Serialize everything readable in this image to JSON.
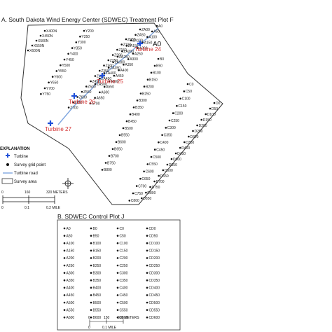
{
  "panelA": {
    "title": "A. South Dakota Wind Energy Center (SDWEC) Treatment Plot F",
    "extra_label": "A0",
    "turbines": [
      "Turbine 24",
      "Turbine 25",
      "Turbine 26",
      "Turbine 27"
    ],
    "point_labels": [
      "X400N",
      "X450N",
      "X500N",
      "X550N",
      "X600N",
      "Y200",
      "Y250",
      "Y300",
      "Y350",
      "Y400",
      "Y450",
      "Y500",
      "Y550",
      "Y600",
      "Y650",
      "Y700",
      "Y750",
      "Z050",
      "Z100",
      "Z150",
      "Z200",
      "Z250",
      "Z300",
      "Z350",
      "Z400",
      "Z450",
      "Z500",
      "Z550",
      "Z600",
      "Z650",
      "Z700",
      "ZA00",
      "ZA50",
      "ZA100",
      "ZA150",
      "ZA200",
      "ZA250",
      "ZA300",
      "ZA350",
      "ZA400",
      "ZA450",
      "ZA500",
      "A0",
      "A50",
      "A100",
      "A150",
      "A200",
      "A250",
      "A300",
      "A350",
      "A400",
      "A450",
      "A500",
      "A550",
      "A600",
      "A650",
      "A700",
      "B0",
      "B50",
      "B100",
      "B150",
      "B200",
      "B250",
      "B300",
      "B350",
      "B400",
      "B450",
      "B500",
      "B550",
      "B600",
      "B650",
      "B700",
      "B750",
      "B800",
      "C0",
      "C50",
      "C100",
      "C150",
      "C200",
      "C250",
      "C300",
      "C350",
      "C400",
      "C450",
      "C500",
      "C550",
      "C600",
      "C650",
      "C700",
      "C750",
      "C800",
      "D0",
      "D50",
      "D100",
      "D150",
      "D200",
      "D250",
      "D300",
      "D350",
      "D400",
      "D450",
      "D500",
      "D550",
      "D600",
      "D650",
      "D700",
      "D750",
      "D800",
      "D850"
    ]
  },
  "legend": {
    "title": "EXPLANATION",
    "items": [
      "Turbine",
      "Survey grid point",
      "Turbine road",
      "Survey area"
    ],
    "scale_m": [
      "0",
      "160",
      "320 METERS"
    ],
    "scale_mi": [
      "0",
      "0.1",
      "0.2 MILE"
    ]
  },
  "panelB": {
    "title": "B. SDWEC Control Plot J",
    "columns": [
      {
        "name": "A",
        "labels": [
          "A0",
          "A50",
          "A100",
          "A150",
          "A200",
          "A250",
          "A300",
          "A350",
          "A400",
          "A450",
          "A500",
          "A550",
          "A600"
        ]
      },
      {
        "name": "B",
        "labels": [
          "B0",
          "B50",
          "B100",
          "B150",
          "B200",
          "B250",
          "B300",
          "B350",
          "B400",
          "B450",
          "B500",
          "B550",
          "B600"
        ]
      },
      {
        "name": "C",
        "labels": [
          "C0",
          "C50",
          "C100",
          "C150",
          "C200",
          "C250",
          "C300",
          "C350",
          "C400",
          "C450",
          "C500",
          "C550",
          "C600"
        ]
      },
      {
        "name": "CD",
        "labels": [
          "CD0",
          "CD50",
          "CD100",
          "CD150",
          "CD200",
          "CD250",
          "CD300",
          "CD350",
          "CD400",
          "CD450",
          "CD500",
          "CD550",
          "CD600"
        ]
      }
    ],
    "scale_m": [
      "0",
      "150",
      "300 METERS"
    ],
    "scale_mi": [
      "0",
      "0.1 MILE"
    ]
  },
  "colors": {
    "turbine": "#1f4fd8",
    "turbine_label": "#d32f2f",
    "road": "#7fa6e0",
    "boundary": "#333333",
    "point": "#111111"
  }
}
